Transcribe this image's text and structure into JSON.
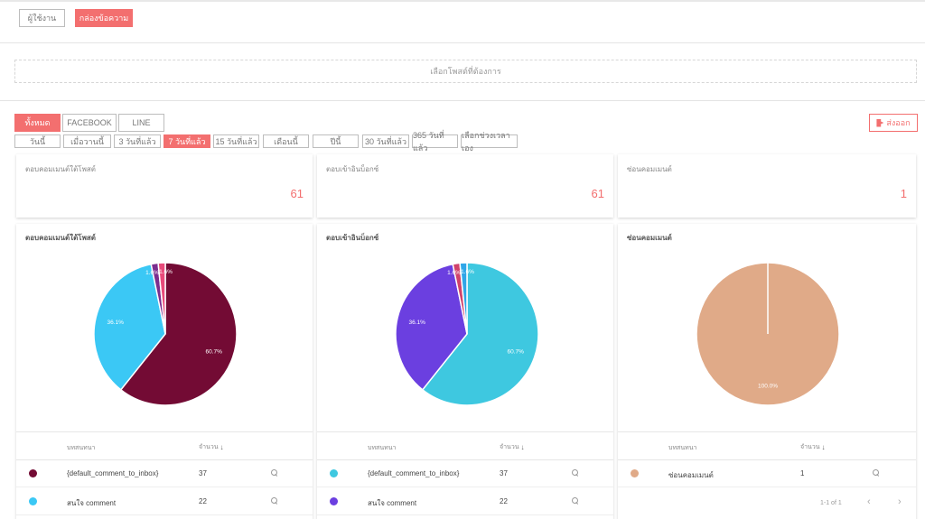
{
  "header": {
    "tabs": [
      {
        "label": "ผู้ใช้งาน",
        "active": false
      },
      {
        "label": "กล่องข้อความ",
        "active": true
      }
    ]
  },
  "post_picker": {
    "label": "เลือกโพสต์ที่ต้องการ"
  },
  "channels": [
    {
      "label": "ทั้งหมด",
      "active": true
    },
    {
      "label": "FACEBOOK",
      "active": false
    },
    {
      "label": "LINE",
      "active": false
    }
  ],
  "date_ranges": [
    {
      "label": "วันนี้",
      "active": false
    },
    {
      "label": "เมื่อวานนี้",
      "active": false
    },
    {
      "label": "3 วันที่แล้ว",
      "active": false
    },
    {
      "label": "7 วันที่แล้ว",
      "active": true
    },
    {
      "label": "15 วันที่แล้ว",
      "active": false
    },
    {
      "label": "เดือนนี้",
      "active": false
    },
    {
      "label": "ปีนี้",
      "active": false
    },
    {
      "label": "30 วันที่แล้ว",
      "active": false
    },
    {
      "label": "365 วันที่แล้ว",
      "active": false
    },
    {
      "label": "เลือกช่วงเวลาเอง",
      "active": false
    }
  ],
  "export": {
    "label": "ส่งออก",
    "icon": "export-icon"
  },
  "accent_color": "#f36f6f",
  "stats": [
    {
      "title": "ตอบคอมเมนต์ใต้โพสต์",
      "value": "61"
    },
    {
      "title": "ตอบเข้าอินบ็อกซ์",
      "value": "61"
    },
    {
      "title": "ซ่อนคอมเมนต์",
      "value": "1"
    }
  ],
  "table_headers": {
    "name": "บทสนทนา",
    "count": "จำนวน"
  },
  "pager": {
    "text": "1-1 of 1"
  },
  "chart_data": [
    {
      "type": "pie",
      "title": "ตอบคอมเมนต์ใต้โพสต์",
      "slices": [
        {
          "name": "{default_comment_to_inbox}",
          "value": 60.7,
          "label": "60.7%",
          "color": "#730b34"
        },
        {
          "name": "สนใจ comment",
          "value": 36.1,
          "label": "36.1%",
          "color": "#3bc8f5"
        },
        {
          "name": "",
          "value": 1.6,
          "label": "1.6%",
          "color": "#7b2d8e"
        },
        {
          "name": "",
          "value": 1.6,
          "label": "1.6%",
          "color": "#e84a7a"
        }
      ],
      "rows": [
        {
          "name": "{default_comment_to_inbox}",
          "count": "37",
          "color": "#730b34"
        },
        {
          "name": "สนใจ comment",
          "count": "22",
          "color": "#3bc8f5"
        }
      ]
    },
    {
      "type": "pie",
      "title": "ตอบเข้าอินบ็อกซ์",
      "slices": [
        {
          "name": "{default_comment_to_inbox}",
          "value": 60.7,
          "label": "60.7%",
          "color": "#3ec8e0"
        },
        {
          "name": "สนใจ comment",
          "value": 36.1,
          "label": "36.1%",
          "color": "#6b3fe0"
        },
        {
          "name": "",
          "value": 1.6,
          "label": "1.6%",
          "color": "#d0426b"
        },
        {
          "name": "",
          "value": 1.6,
          "label": "1.6%",
          "color": "#2fa6e8"
        }
      ],
      "rows": [
        {
          "name": "{default_comment_to_inbox}",
          "count": "37",
          "color": "#3ec8e0"
        },
        {
          "name": "สนใจ comment",
          "count": "22",
          "color": "#6b3fe0"
        }
      ]
    },
    {
      "type": "pie",
      "title": "ซ่อนคอมเมนต์",
      "slices": [
        {
          "name": "ซ่อนคอมเมนต์",
          "value": 100.0,
          "label": "100.0%",
          "color": "#e0aa88"
        }
      ],
      "rows": [
        {
          "name": "ซ่อนคอมเมนต์",
          "count": "1",
          "color": "#e0aa88"
        }
      ]
    }
  ]
}
